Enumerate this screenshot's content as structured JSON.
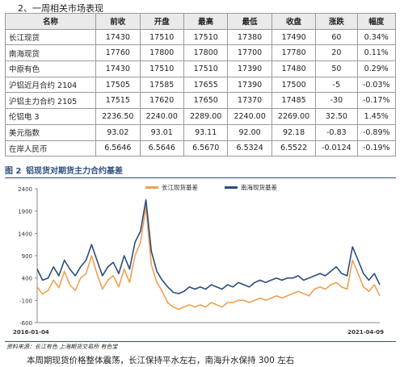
{
  "section_title": "2、一周相关市场表现",
  "table": {
    "headers": [
      "名称",
      "前收",
      "开盘",
      "最高",
      "最低",
      "收盘",
      "涨跌",
      "幅度"
    ],
    "rows": [
      [
        "长江现货",
        "17430",
        "17510",
        "17510",
        "17380",
        "17490",
        "60",
        "0.34%"
      ],
      [
        "南海现货",
        "17760",
        "17800",
        "17800",
        "17700",
        "17780",
        "20",
        "0.11%"
      ],
      [
        "中原有色",
        "17430",
        "17510",
        "17510",
        "17390",
        "17480",
        "50",
        "0.29%"
      ],
      [
        "沪铝近月合约 2104",
        "17505",
        "17585",
        "17655",
        "17390",
        "17500",
        "-5",
        "-0.03%"
      ],
      [
        "沪铝主力合约 2105",
        "17515",
        "17620",
        "17650",
        "17370",
        "17485",
        "-30",
        "-0.17%"
      ],
      [
        "伦铝电 3",
        "2236.50",
        "2240.00",
        "2289.00",
        "2240.00",
        "2269.00",
        "32.50",
        "1.45%"
      ],
      [
        "美元指数",
        "93.02",
        "93.01",
        "93.11",
        "92.00",
        "92.18",
        "-0.83",
        "-0.89%"
      ],
      [
        "在岸人民币",
        "6.5646",
        "6.5646",
        "6.5670",
        "6.5324",
        "6.5522",
        "-0.0124",
        "-0.19%"
      ]
    ]
  },
  "figure": {
    "number": "图 2",
    "title": "铝现货对期货主力合约基差",
    "source": "资料来源：长江有色   上海期货交易所   有色宝"
  },
  "chart_data": {
    "type": "line",
    "title": "",
    "xlabel": "",
    "ylabel": "",
    "x_tick_labels": [
      "2016-01-04",
      "2021-04-09"
    ],
    "y_ticks": [
      2400,
      1900,
      1400,
      900,
      400,
      -100,
      -600
    ],
    "ylim": [
      -600,
      2400
    ],
    "grid": false,
    "legend_position": "top-center",
    "x": [
      "2016-01",
      "2016-02",
      "2016-03",
      "2016-04",
      "2016-05",
      "2016-06",
      "2016-07",
      "2016-08",
      "2016-09",
      "2016-10",
      "2016-11",
      "2016-12",
      "2017-01",
      "2017-02",
      "2017-03",
      "2017-04",
      "2017-05",
      "2017-06",
      "2017-07",
      "2017-08",
      "2017-09",
      "2017-10",
      "2017-11",
      "2017-12",
      "2018-01",
      "2018-02",
      "2018-03",
      "2018-04",
      "2018-05",
      "2018-06",
      "2018-07",
      "2018-08",
      "2018-09",
      "2018-10",
      "2018-11",
      "2018-12",
      "2019-01",
      "2019-02",
      "2019-03",
      "2019-04",
      "2019-05",
      "2019-06",
      "2019-07",
      "2019-08",
      "2019-09",
      "2019-10",
      "2019-11",
      "2019-12",
      "2020-01",
      "2020-02",
      "2020-03",
      "2020-04",
      "2020-05",
      "2020-06",
      "2020-07",
      "2020-08",
      "2020-09",
      "2020-10",
      "2020-11",
      "2020-12",
      "2021-01",
      "2021-02",
      "2021-03",
      "2021-04"
    ],
    "series": [
      {
        "name": "长江现货基差",
        "color": "#f0a050",
        "values": [
          200,
          40,
          120,
          350,
          180,
          550,
          250,
          120,
          400,
          500,
          900,
          500,
          150,
          350,
          450,
          200,
          600,
          300,
          900,
          1200,
          2000,
          700,
          300,
          100,
          -150,
          -250,
          -300,
          -250,
          -200,
          -250,
          -200,
          -250,
          -150,
          -200,
          -250,
          -150,
          -150,
          -100,
          -100,
          -150,
          -100,
          -50,
          -100,
          -50,
          0,
          -50,
          0,
          50,
          100,
          50,
          0,
          150,
          200,
          150,
          250,
          300,
          200,
          150,
          800,
          500,
          200,
          100,
          250,
          0
        ]
      },
      {
        "name": "南海现货基差",
        "color": "#2b4d7e",
        "values": [
          600,
          350,
          400,
          650,
          450,
          800,
          600,
          450,
          650,
          800,
          1150,
          800,
          450,
          650,
          750,
          500,
          900,
          600,
          1200,
          1450,
          2150,
          1000,
          550,
          350,
          200,
          80,
          50,
          100,
          200,
          150,
          200,
          150,
          250,
          200,
          150,
          250,
          200,
          300,
          250,
          200,
          300,
          350,
          300,
          350,
          400,
          350,
          400,
          400,
          450,
          350,
          400,
          450,
          500,
          450,
          550,
          650,
          500,
          450,
          1100,
          800,
          500,
          350,
          500,
          250
        ]
      }
    ]
  },
  "bottom_text": "本周期现货价格整体震荡，长江保持平水左右，南海升水保持 300 左右"
}
